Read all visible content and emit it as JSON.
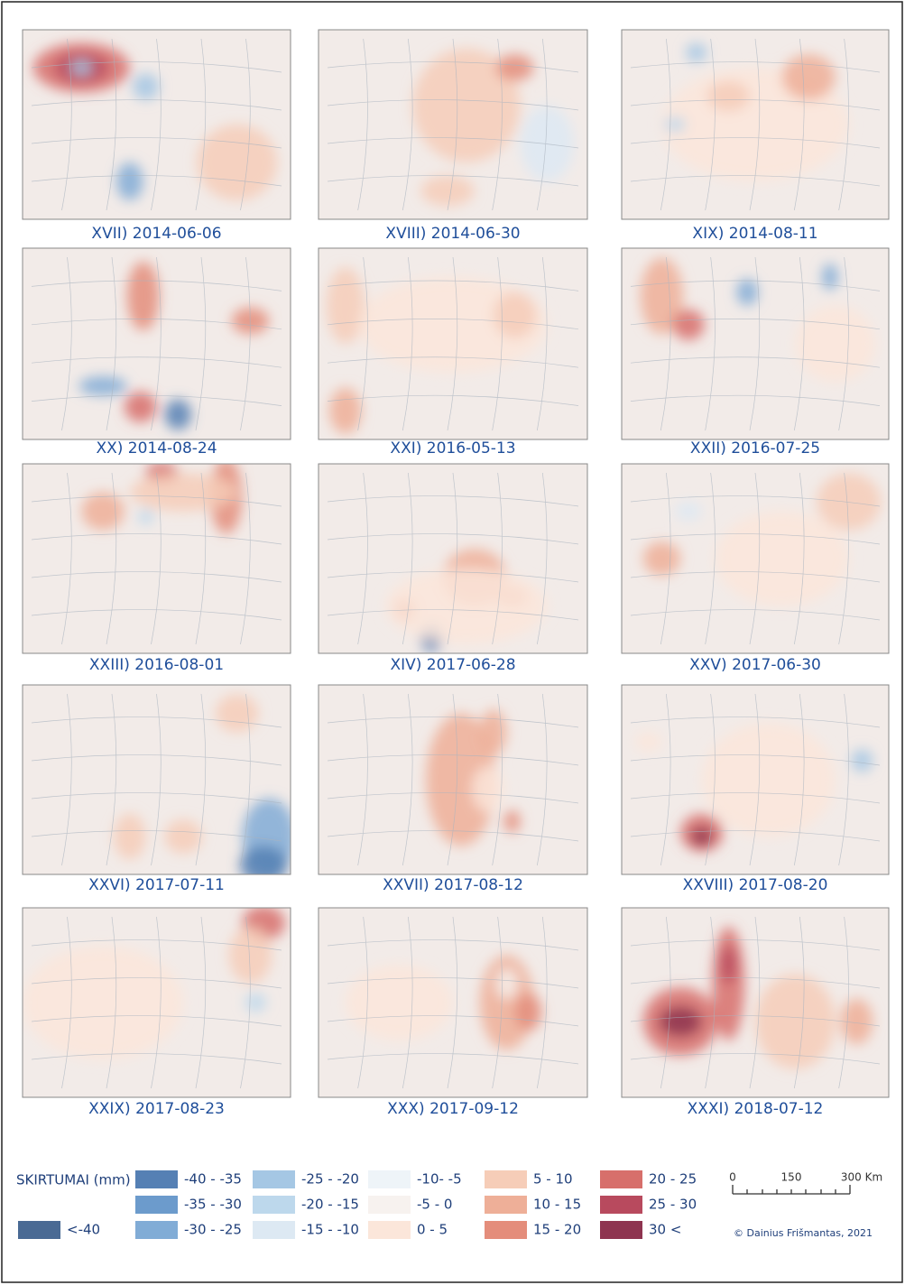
{
  "panels": [
    {
      "label": "XVII) 2014-06-06"
    },
    {
      "label": "XVIII) 2014-06-30"
    },
    {
      "label": "XIX) 2014-08-11"
    },
    {
      "label": "XX) 2014-08-24"
    },
    {
      "label": "XXI) 2016-05-13"
    },
    {
      "label": "XXII) 2016-07-25"
    },
    {
      "label": "XXIII) 2016-08-01"
    },
    {
      "label": "XIV) 2017-06-28"
    },
    {
      "label": "XXV) 2017-06-30"
    },
    {
      "label": "XXVI) 2017-07-11"
    },
    {
      "label": "XXVII) 2017-08-12"
    },
    {
      "label": "XXVIII) 2017-08-20"
    },
    {
      "label": "XXIX) 2017-08-23"
    },
    {
      "label": "XXX) 2017-09-12"
    },
    {
      "label": "XXXI) 2018-07-12"
    }
  ],
  "legend": {
    "title": "SKIRTUMAI (mm)",
    "classes": [
      {
        "label": "<-40",
        "color": "#4a6a94"
      },
      {
        "label": "-40 - -35",
        "color": "#5580b4"
      },
      {
        "label": "-35 - -30",
        "color": "#6c9bcc"
      },
      {
        "label": "-30 - -25",
        "color": "#81acd6"
      },
      {
        "label": "-25 - -20",
        "color": "#a5c7e4"
      },
      {
        "label": "-20 - -15",
        "color": "#bdd8ec"
      },
      {
        "label": "-15 - -10",
        "color": "#dde9f3"
      },
      {
        "label": "-10- -5",
        "color": "#eef4f8"
      },
      {
        "label": "-5 - 0",
        "color": "#f7f2ef"
      },
      {
        "label": "0 - 5",
        "color": "#fbe6da"
      },
      {
        "label": "5 - 10",
        "color": "#f6cdb8"
      },
      {
        "label": "10 - 15",
        "color": "#eeaf98"
      },
      {
        "label": "15 - 20",
        "color": "#e48d7b"
      },
      {
        "label": "20 - 25",
        "color": "#d76f6b"
      },
      {
        "label": "25 - 30",
        "color": "#b84a5e"
      },
      {
        "label": "30 <",
        "color": "#8e3450"
      }
    ]
  },
  "scale_bar": {
    "labels": [
      "0",
      "150",
      "300 Km"
    ]
  },
  "credit": "© Dainius Frišmantas, 2021"
}
